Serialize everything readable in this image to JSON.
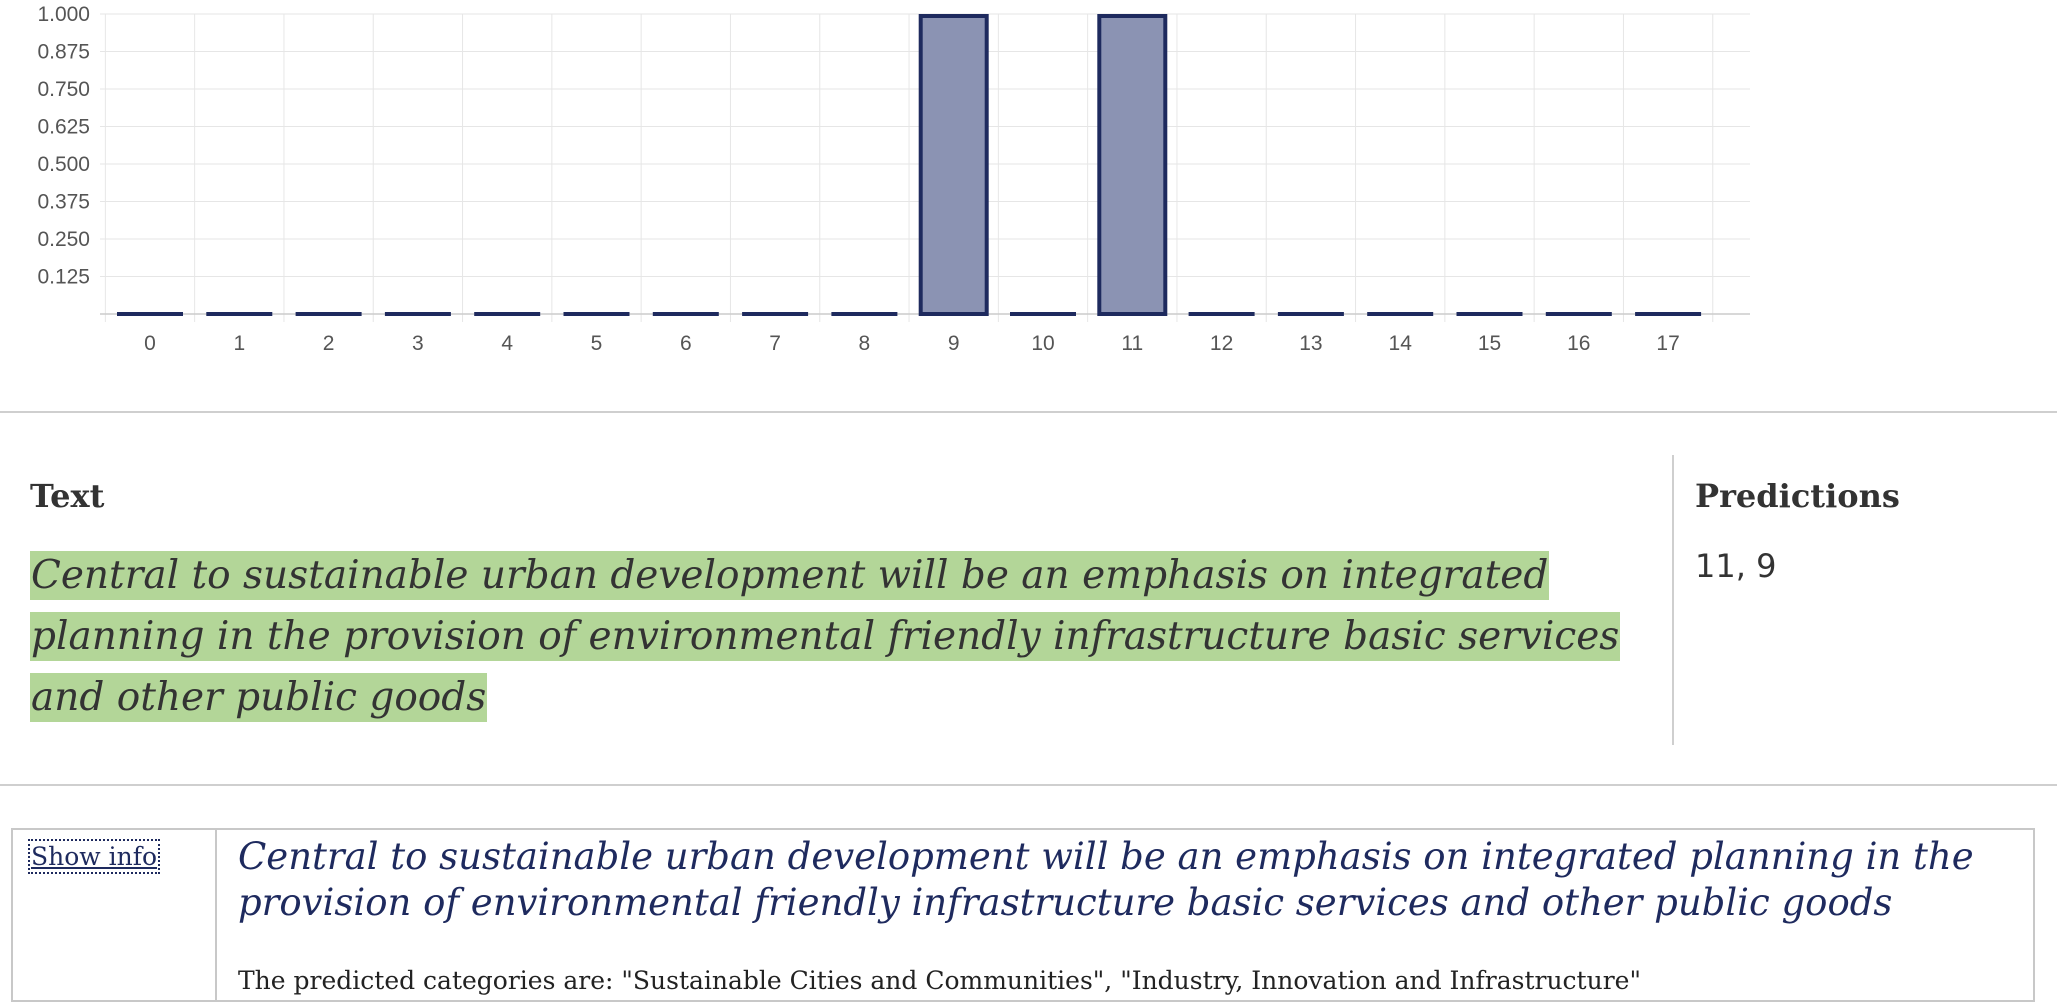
{
  "chart_data": {
    "type": "bar",
    "categories": [
      "0",
      "1",
      "2",
      "3",
      "4",
      "5",
      "6",
      "7",
      "8",
      "9",
      "10",
      "11",
      "12",
      "13",
      "14",
      "15",
      "16",
      "17"
    ],
    "values": [
      0,
      0,
      0,
      0,
      0,
      0,
      0,
      0,
      0,
      1,
      0,
      1,
      0,
      0,
      0,
      0,
      0,
      0
    ],
    "yticks": [
      "0.125",
      "0.250",
      "0.375",
      "0.500",
      "0.625",
      "0.750",
      "0.875",
      "1.000"
    ],
    "ylim": [
      0,
      1
    ],
    "grid": true,
    "bar_fill": "#8b93b3",
    "bar_stroke": "#1e2a5e",
    "grid_color": "#e6e6e6"
  },
  "text_section": {
    "text_heading": "Text",
    "text_value": "Central to sustainable urban development will be an emphasis on integrated planning in the provision of environmental friendly infrastructure basic services and other public goods",
    "predictions_heading": "Predictions",
    "predictions_value": "11, 9",
    "highlight_color": "#b3d698"
  },
  "info_box": {
    "show_info_label": "Show info",
    "text": "Central to sustainable urban development will be an emphasis on integrated planning in the provision of environmental friendly infrastructure basic services and other public goods",
    "caption": "The predicted categories are: \"Sustainable Cities and Communities\", \"Industry, Innovation and Infrastructure\""
  }
}
